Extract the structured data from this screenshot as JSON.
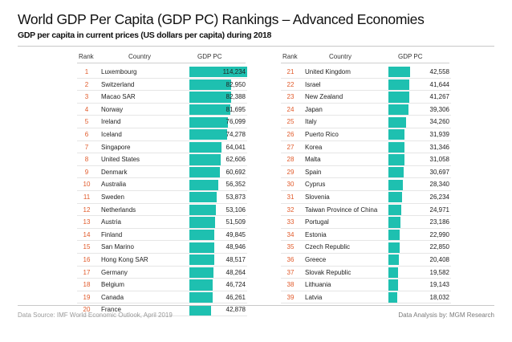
{
  "header": {
    "title": "World GDP Per Capita (GDP PC) Rankings – Advanced Economies",
    "subtitle": "GDP per capita in current prices (US dollars per capita) during 2018"
  },
  "columns": {
    "rank": "Rank",
    "country": "Country",
    "value": "GDP PC"
  },
  "footer": {
    "source": "Data Source: IMF World Economic Outlook, April 2019",
    "credit": "Data Analysis by: MGM Research"
  },
  "colors": {
    "bar": "#1ec0b0",
    "rank": "#e15a2a"
  },
  "chart_data": {
    "type": "bar",
    "title": "World GDP Per Capita (GDP PC) Rankings – Advanced Economies",
    "subtitle": "GDP per capita in current prices (US dollars per capita) during 2018",
    "max_value": 114234,
    "rows": [
      {
        "rank": "1",
        "country": "Luxembourg",
        "value": 114234,
        "label": "114,234"
      },
      {
        "rank": "2",
        "country": "Switzerland",
        "value": 82950,
        "label": "82,950"
      },
      {
        "rank": "3",
        "country": "Macao SAR",
        "value": 82388,
        "label": "82,388"
      },
      {
        "rank": "4",
        "country": "Norway",
        "value": 81695,
        "label": "81,695"
      },
      {
        "rank": "5",
        "country": "Ireland",
        "value": 76099,
        "label": "76,099"
      },
      {
        "rank": "6",
        "country": "Iceland",
        "value": 74278,
        "label": "74,278"
      },
      {
        "rank": "7",
        "country": "Singapore",
        "value": 64041,
        "label": "64,041"
      },
      {
        "rank": "8",
        "country": "United States",
        "value": 62606,
        "label": "62,606"
      },
      {
        "rank": "9",
        "country": "Denmark",
        "value": 60692,
        "label": "60,692"
      },
      {
        "rank": "10",
        "country": "Australia",
        "value": 56352,
        "label": "56,352"
      },
      {
        "rank": "11",
        "country": "Sweden",
        "value": 53873,
        "label": "53,873"
      },
      {
        "rank": "12",
        "country": "Netherlands",
        "value": 53106,
        "label": "53,106"
      },
      {
        "rank": "13",
        "country": "Austria",
        "value": 51509,
        "label": "51,509"
      },
      {
        "rank": "14",
        "country": "Finland",
        "value": 49845,
        "label": "49,845"
      },
      {
        "rank": "15",
        "country": "San Marino",
        "value": 48946,
        "label": "48,946"
      },
      {
        "rank": "16",
        "country": "Hong Kong SAR",
        "value": 48517,
        "label": "48,517"
      },
      {
        "rank": "17",
        "country": "Germany",
        "value": 48264,
        "label": "48,264"
      },
      {
        "rank": "18",
        "country": "Belgium",
        "value": 46724,
        "label": "46,724"
      },
      {
        "rank": "19",
        "country": "Canada",
        "value": 46261,
        "label": "46,261"
      },
      {
        "rank": "20",
        "country": "France",
        "value": 42878,
        "label": "42,878"
      },
      {
        "rank": "21",
        "country": "United Kingdom",
        "value": 42558,
        "label": "42,558"
      },
      {
        "rank": "22",
        "country": "Israel",
        "value": 41644,
        "label": "41,644"
      },
      {
        "rank": "23",
        "country": "New Zealand",
        "value": 41267,
        "label": "41,267"
      },
      {
        "rank": "24",
        "country": "Japan",
        "value": 39306,
        "label": "39,306"
      },
      {
        "rank": "25",
        "country": "Italy",
        "value": 34260,
        "label": "34,260"
      },
      {
        "rank": "26",
        "country": "Puerto Rico",
        "value": 31939,
        "label": "31,939"
      },
      {
        "rank": "27",
        "country": "Korea",
        "value": 31346,
        "label": "31,346"
      },
      {
        "rank": "28",
        "country": "Malta",
        "value": 31058,
        "label": "31,058"
      },
      {
        "rank": "29",
        "country": "Spain",
        "value": 30697,
        "label": "30,697"
      },
      {
        "rank": "30",
        "country": "Cyprus",
        "value": 28340,
        "label": "28,340"
      },
      {
        "rank": "31",
        "country": "Slovenia",
        "value": 26234,
        "label": "26,234"
      },
      {
        "rank": "32",
        "country": "Taiwan Province of China",
        "value": 24971,
        "label": "24,971"
      },
      {
        "rank": "33",
        "country": "Portugal",
        "value": 23186,
        "label": "23,186"
      },
      {
        "rank": "34",
        "country": "Estonia",
        "value": 22990,
        "label": "22,990"
      },
      {
        "rank": "35",
        "country": "Czech Republic",
        "value": 22850,
        "label": "22,850"
      },
      {
        "rank": "36",
        "country": "Greece",
        "value": 20408,
        "label": "20,408"
      },
      {
        "rank": "37",
        "country": "Slovak Republic",
        "value": 19582,
        "label": "19,582"
      },
      {
        "rank": "38",
        "country": "Lithuania",
        "value": 19143,
        "label": "19,143"
      },
      {
        "rank": "39",
        "country": "Latvia",
        "value": 18032,
        "label": "18,032"
      }
    ]
  }
}
